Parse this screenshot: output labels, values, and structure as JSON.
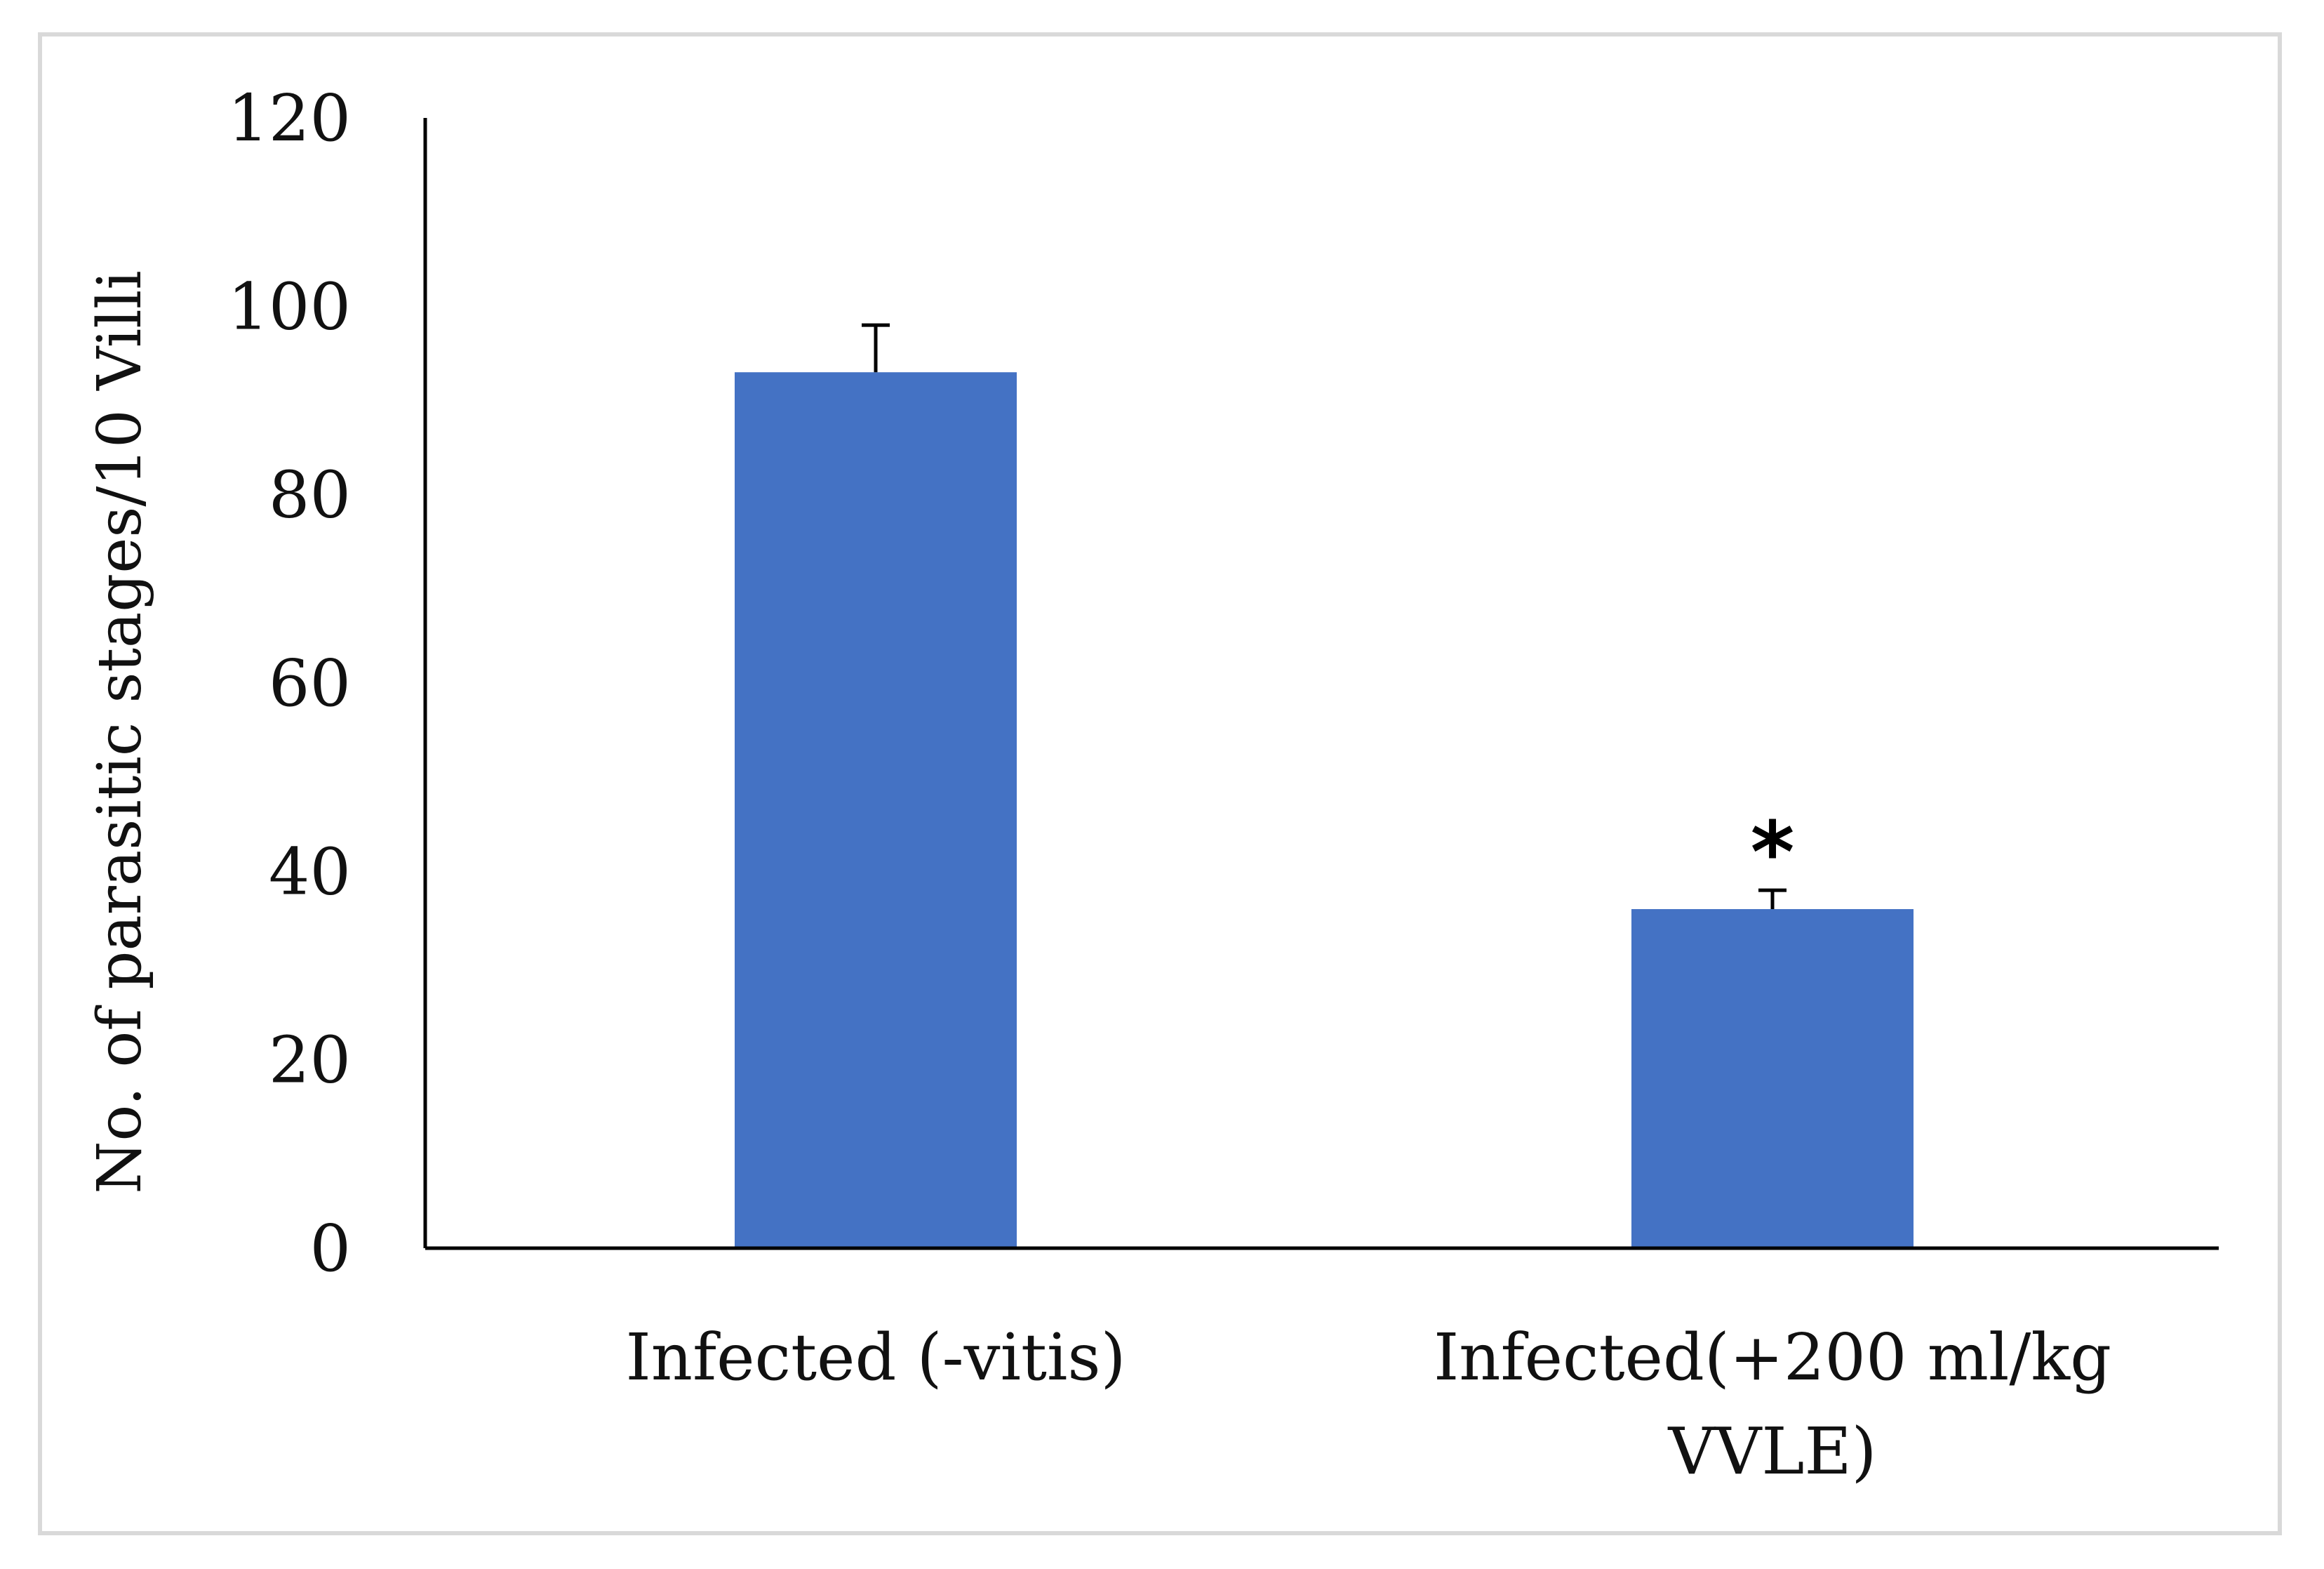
{
  "chart_data": {
    "type": "bar",
    "title": "",
    "xlabel": "",
    "ylabel": "No. of parasitic stages/10 Villi",
    "ylim": [
      0,
      120
    ],
    "yticks": [
      0,
      20,
      40,
      60,
      80,
      100,
      120
    ],
    "categories": [
      [
        "Infected (-vitis)"
      ],
      [
        "Infected(+200 ml/kg",
        "VVLE)"
      ]
    ],
    "values": [
      93,
      36
    ],
    "error_plus": [
      5,
      2
    ],
    "annotations": [
      "",
      "*"
    ],
    "grid": false,
    "legend": "none"
  },
  "colors": {
    "bar": "#4472c4",
    "axis": "#000000"
  }
}
